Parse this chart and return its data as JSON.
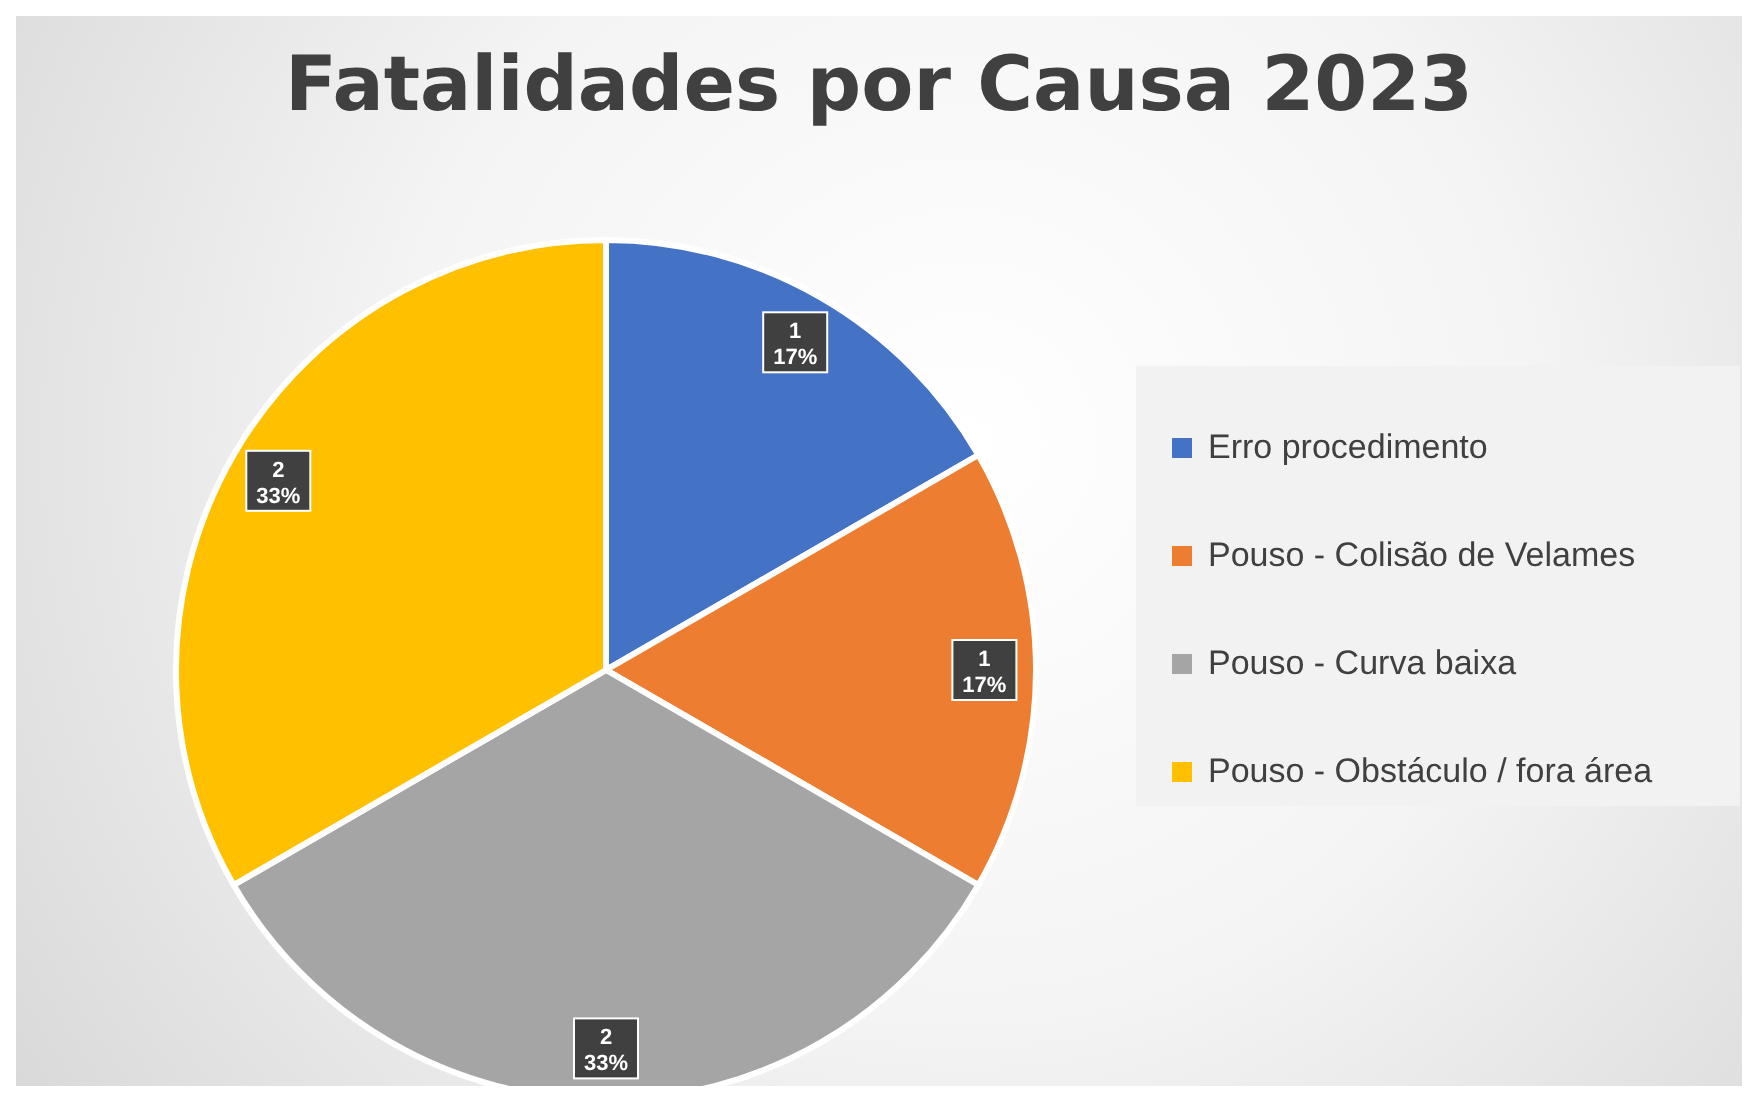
{
  "chart_data": {
    "type": "pie",
    "title": "Fatalidades por Causa 2023",
    "categories": [
      "Erro procedimento",
      "Pouso - Colisão de Velames",
      "Pouso - Curva baixa",
      "Pouso - Obstáculo / fora área"
    ],
    "values": [
      1,
      1,
      2,
      2
    ],
    "colors": [
      "#4472c4",
      "#ed7d31",
      "#a5a5a5",
      "#ffc000"
    ],
    "value_labels": [
      "1\n17%",
      "1\n17%",
      "2\n33%",
      "2\n33%"
    ],
    "legend": "right"
  }
}
